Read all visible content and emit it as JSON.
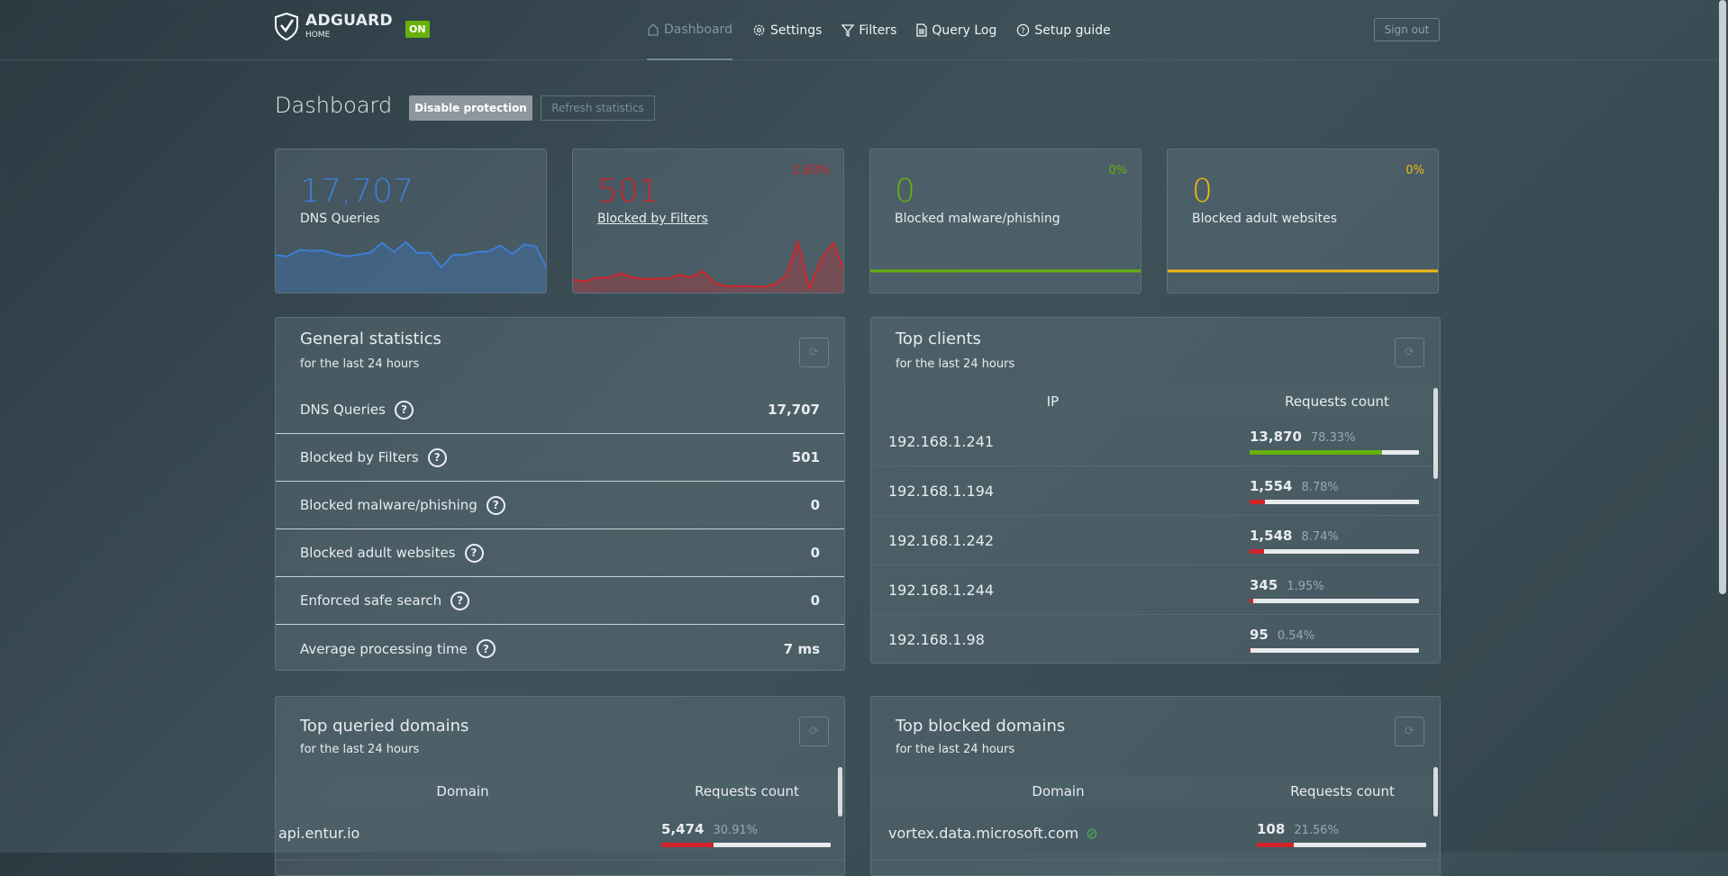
{
  "header": {
    "brand": "ADGUARD",
    "brand_sub": "HOME",
    "status_badge": "ON",
    "nav": [
      {
        "label": "Dashboard",
        "icon": "home-icon",
        "active": true
      },
      {
        "label": "Settings",
        "icon": "gear-icon"
      },
      {
        "label": "Filters",
        "icon": "filter-icon"
      },
      {
        "label": "Query Log",
        "icon": "document-icon"
      },
      {
        "label": "Setup guide",
        "icon": "help-icon"
      }
    ],
    "sign_out": "Sign out"
  },
  "page": {
    "title": "Dashboard",
    "disable_protection": "Disable protection",
    "refresh_statistics": "Refresh statistics"
  },
  "cards": [
    {
      "value": "17,707",
      "label": "DNS Queries",
      "percent": "",
      "color": "#3d7fd6",
      "sparkline": [
        62,
        60,
        72,
        70,
        71,
        64,
        60,
        63,
        67,
        85,
        68,
        86,
        66,
        67,
        40,
        63,
        63,
        68,
        69,
        80,
        64,
        82,
        78,
        35
      ]
    },
    {
      "value": "501",
      "label": "Blocked by Filters",
      "percent": "2.83%",
      "color": "#d0242a",
      "sparkline": [
        20,
        16,
        24,
        24,
        33,
        25,
        21,
        22,
        22,
        30,
        25,
        38,
        12,
        6,
        6,
        6,
        4,
        10,
        28,
        100,
        2,
        65,
        98,
        35
      ]
    },
    {
      "value": "0",
      "label": "Blocked malware/phishing",
      "percent": "0%",
      "color": "#67b10a",
      "sparkline": [
        0,
        0
      ]
    },
    {
      "value": "0",
      "label": "Blocked adult websites",
      "percent": "0%",
      "color": "#f0b810",
      "sparkline": [
        0,
        0
      ]
    }
  ],
  "general": {
    "title": "General statistics",
    "subtitle": "for the last 24 hours",
    "rows": [
      {
        "label": "DNS Queries",
        "value": "17,707"
      },
      {
        "label": "Blocked by Filters",
        "value": "501"
      },
      {
        "label": "Blocked malware/phishing",
        "value": "0"
      },
      {
        "label": "Blocked adult websites",
        "value": "0"
      },
      {
        "label": "Enforced safe search",
        "value": "0"
      },
      {
        "label": "Average processing time",
        "value": "7 ms"
      }
    ]
  },
  "clients": {
    "title": "Top clients",
    "subtitle": "for the last 24 hours",
    "col1": "IP",
    "col2": "Requests count",
    "rows": [
      {
        "ip": "192.168.1.241",
        "count": "13,870",
        "percent": "78.33%",
        "fill": 78.33,
        "color": "#67b10a"
      },
      {
        "ip": "192.168.1.194",
        "count": "1,554",
        "percent": "8.78%",
        "fill": 8.78,
        "color": "#d0242a"
      },
      {
        "ip": "192.168.1.242",
        "count": "1,548",
        "percent": "8.74%",
        "fill": 8.74,
        "color": "#d0242a"
      },
      {
        "ip": "192.168.1.244",
        "count": "345",
        "percent": "1.95%",
        "fill": 1.95,
        "color": "#d0242a"
      },
      {
        "ip": "192.168.1.98",
        "count": "95",
        "percent": "0.54%",
        "fill": 0.54,
        "color": "#d0242a"
      }
    ]
  },
  "queried": {
    "title": "Top queried domains",
    "subtitle": "for the last 24 hours",
    "col1": "Domain",
    "col2": "Requests count",
    "rows": [
      {
        "domain": "api.entur.io",
        "count": "5,474",
        "percent": "30.91%",
        "fill": 30.91,
        "color": "#d0242a"
      }
    ]
  },
  "blocked": {
    "title": "Top blocked domains",
    "subtitle": "for the last 24 hours",
    "col1": "Domain",
    "col2": "Requests count",
    "rows": [
      {
        "domain": "vortex.data.microsoft.com",
        "count": "108",
        "percent": "21.56%",
        "fill": 21.56,
        "color": "#d0242a"
      }
    ]
  }
}
